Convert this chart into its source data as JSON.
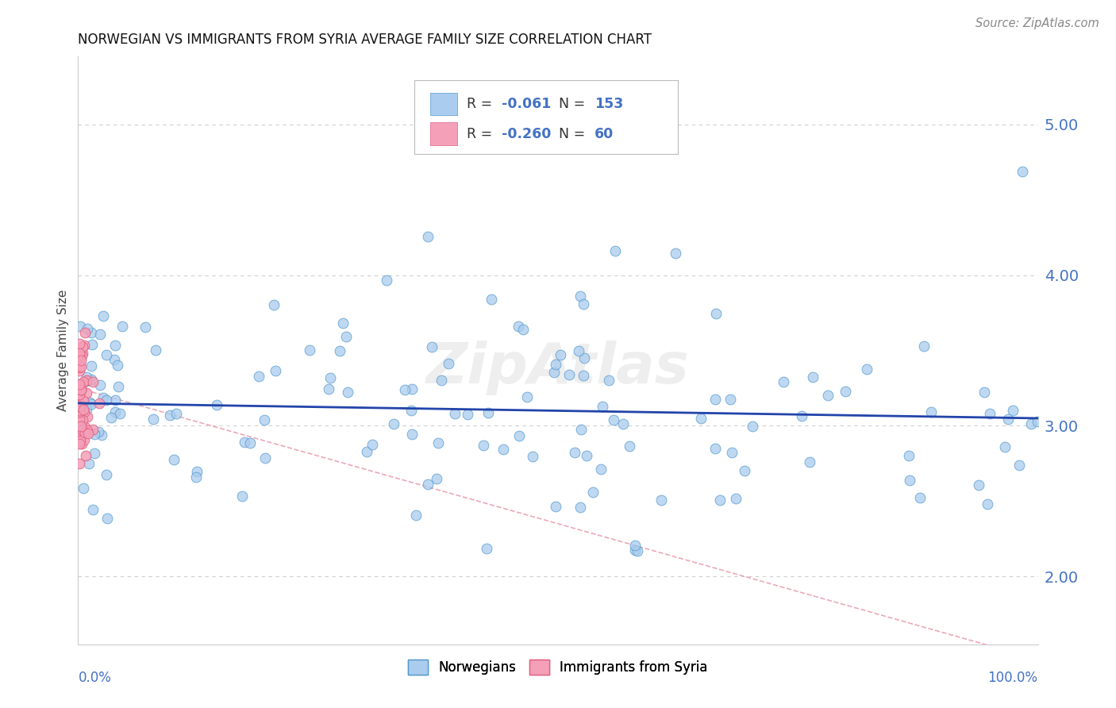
{
  "title": "NORWEGIAN VS IMMIGRANTS FROM SYRIA AVERAGE FAMILY SIZE CORRELATION CHART",
  "source": "Source: ZipAtlas.com",
  "ylabel_ticks": [
    2.0,
    3.0,
    4.0,
    5.0
  ],
  "xlim": [
    0.0,
    1.0
  ],
  "ylim": [
    1.55,
    5.45
  ],
  "norwegian_color": "#aaccee",
  "norwegian_edge": "#5599cc",
  "syrian_color": "#f4a0b8",
  "syrian_edge": "#e06080",
  "trend_norwegian_color": "#2244aa",
  "trend_syrian_color": "#e8a0b0",
  "R_norwegian": -0.061,
  "N_norwegian": 153,
  "R_syrian": -0.26,
  "N_syrian": 60,
  "legend_text_color": "#4472c4",
  "watermark": "ZipAtlas",
  "background_color": "#ffffff",
  "grid_color": "#d0d0d0"
}
